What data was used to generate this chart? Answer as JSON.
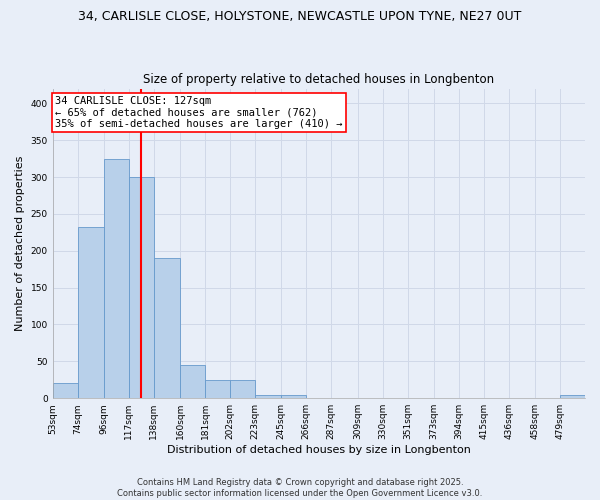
{
  "title1": "34, CARLISLE CLOSE, HOLYSTONE, NEWCASTLE UPON TYNE, NE27 0UT",
  "title2": "Size of property relative to detached houses in Longbenton",
  "xlabel": "Distribution of detached houses by size in Longbenton",
  "ylabel": "Number of detached properties",
  "bin_edges": [
    53,
    74,
    96,
    117,
    138,
    160,
    181,
    202,
    223,
    245,
    266,
    287,
    309,
    330,
    351,
    373,
    394,
    415,
    436,
    458,
    479,
    500
  ],
  "bar_heights": [
    20,
    232,
    325,
    300,
    190,
    45,
    25,
    25,
    5,
    5,
    0,
    0,
    0,
    0,
    0,
    0,
    0,
    0,
    0,
    0,
    5
  ],
  "bar_color": "#b8d0ea",
  "bar_edgecolor": "#6699cc",
  "vline_x": 127,
  "vline_color": "red",
  "annotation_text": "34 CARLISLE CLOSE: 127sqm\n← 65% of detached houses are smaller (762)\n35% of semi-detached houses are larger (410) →",
  "annotation_fontsize": 7.5,
  "ylim": [
    0,
    420
  ],
  "yticks": [
    0,
    50,
    100,
    150,
    200,
    250,
    300,
    350,
    400
  ],
  "xlim": [
    53,
    500
  ],
  "tick_labels": [
    "53sqm",
    "74sqm",
    "96sqm",
    "117sqm",
    "138sqm",
    "160sqm",
    "181sqm",
    "202sqm",
    "223sqm",
    "245sqm",
    "266sqm",
    "287sqm",
    "309sqm",
    "330sqm",
    "351sqm",
    "373sqm",
    "394sqm",
    "415sqm",
    "436sqm",
    "458sqm",
    "479sqm"
  ],
  "tick_positions": [
    53,
    74,
    96,
    117,
    138,
    160,
    181,
    202,
    223,
    245,
    266,
    287,
    309,
    330,
    351,
    373,
    394,
    415,
    436,
    458,
    479
  ],
  "background_color": "#e8eef8",
  "grid_color": "#d0d8e8",
  "footer_text": "Contains HM Land Registry data © Crown copyright and database right 2025.\nContains public sector information licensed under the Open Government Licence v3.0.",
  "title1_fontsize": 9,
  "title2_fontsize": 8.5,
  "xlabel_fontsize": 8,
  "ylabel_fontsize": 8,
  "footer_fontsize": 6
}
